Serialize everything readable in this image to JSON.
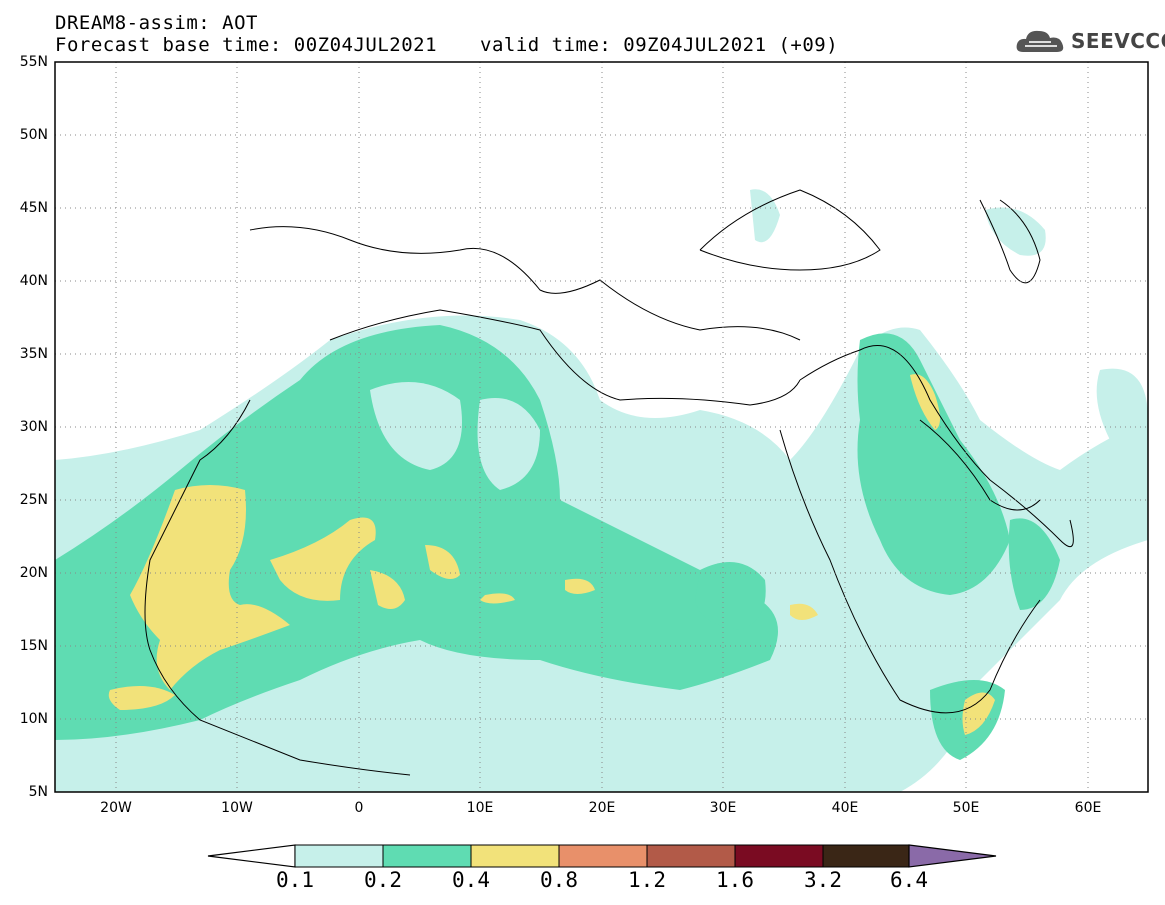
{
  "header": {
    "title": "DREAM8-assim: AOT",
    "base_time": "Forecast base time: 00Z04JUL2021",
    "valid_time": "valid time: 09Z04JUL2021 (+09)"
  },
  "logo": {
    "text": "SEEVCCC",
    "icon": "cloud-icon"
  },
  "map": {
    "lat_labels": [
      "55N",
      "50N",
      "45N",
      "40N",
      "35N",
      "30N",
      "25N",
      "20N",
      "15N",
      "10N",
      "5N"
    ],
    "lon_labels": [
      "20W",
      "10W",
      "0",
      "10E",
      "20E",
      "30E",
      "40E",
      "50E",
      "60E"
    ]
  },
  "colorbar": {
    "labels": [
      "0.1",
      "0.2",
      "0.4",
      "0.8",
      "1.2",
      "1.6",
      "3.2",
      "6.4"
    ],
    "colors": [
      "#c6f0ea",
      "#5fdcb2",
      "#f2e27a",
      "#e8906a",
      "#b25a48",
      "#7a0b22",
      "#3a2616",
      "#8a6aa8"
    ]
  }
}
